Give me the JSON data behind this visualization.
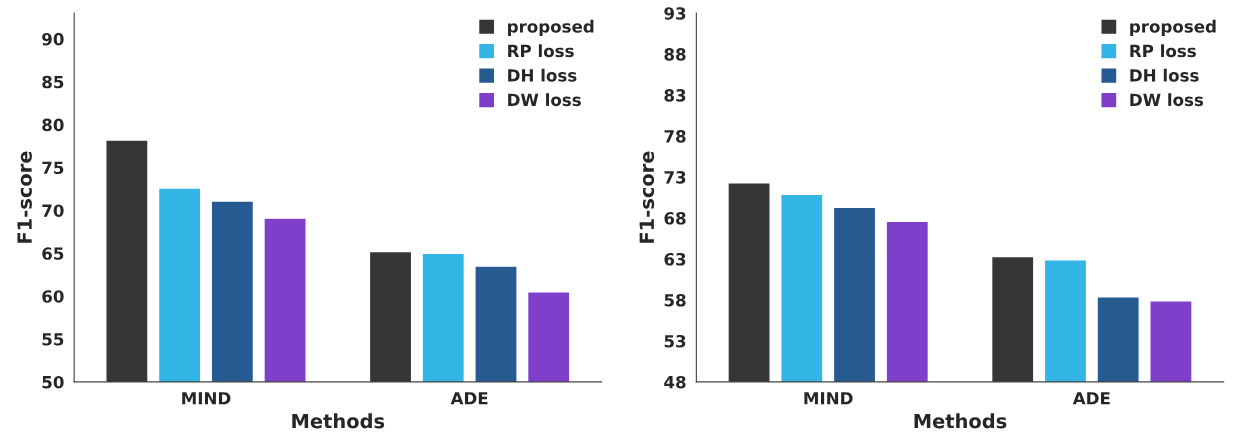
{
  "chart_data": [
    {
      "type": "bar",
      "xlabel": "Methods",
      "ylabel": "F1-score",
      "categories": [
        "MIND",
        "ADE"
      ],
      "ylim": [
        50,
        93
      ],
      "yticks": [
        50,
        55,
        60,
        65,
        70,
        75,
        80,
        85,
        90
      ],
      "grid": false,
      "legend": "top right",
      "series": [
        {
          "name": "proposed",
          "color": "#363636",
          "values": [
            78.2,
            65.2
          ]
        },
        {
          "name": "RP loss",
          "color": "#33b5e5",
          "values": [
            72.6,
            65.0
          ]
        },
        {
          "name": "DH loss",
          "color": "#265b91",
          "values": [
            71.1,
            63.5
          ]
        },
        {
          "name": "DW loss",
          "color": "#7f3fcb",
          "values": [
            69.1,
            60.5
          ]
        }
      ]
    },
    {
      "type": "bar",
      "xlabel": "Methods",
      "ylabel": "F1-score",
      "categories": [
        "MIND",
        "ADE"
      ],
      "ylim": [
        48,
        93
      ],
      "yticks": [
        48,
        53,
        58,
        63,
        68,
        73,
        78,
        83,
        88,
        93
      ],
      "grid": false,
      "legend": "top right",
      "series": [
        {
          "name": "proposed",
          "color": "#363636",
          "values": [
            72.3,
            63.3
          ]
        },
        {
          "name": "RP loss",
          "color": "#33b5e5",
          "values": [
            70.9,
            62.9
          ]
        },
        {
          "name": "DH loss",
          "color": "#265b91",
          "values": [
            69.3,
            58.4
          ]
        },
        {
          "name": "DW loss",
          "color": "#7f3fcb",
          "values": [
            67.6,
            57.9
          ]
        }
      ]
    }
  ]
}
